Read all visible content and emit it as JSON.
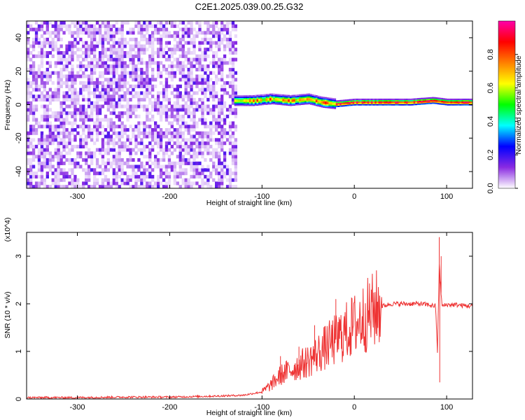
{
  "page": {
    "title": "C2E1.2025.039.00.25.G32"
  },
  "chart_data": [
    {
      "type": "heatmap",
      "xlabel": "Height of straight line (km)",
      "ylabel": "Frequency (Hz)",
      "xlim": [
        -355,
        128
      ],
      "ylim": [
        -50,
        50
      ],
      "xticks": [
        -300,
        -200,
        -100,
        0,
        100
      ],
      "yticks": [
        -40,
        -20,
        0,
        20,
        40
      ],
      "colorbar": {
        "label": "Normalized spectral amplitude",
        "range": [
          0,
          1
        ],
        "ticks": [
          "0.0",
          "0.2",
          "0.4",
          "0.6",
          "0.8"
        ],
        "tick_values": [
          0,
          0.2,
          0.4,
          0.6,
          0.8
        ],
        "colors": [
          "#ffffff",
          "#8a2be2",
          "#0000ff",
          "#00ffff",
          "#00ff00",
          "#ffff00",
          "#ff8000",
          "#ff0000",
          "#ff00aa"
        ]
      },
      "noise_region_km": [
        -355,
        -128
      ],
      "signal_ridge": {
        "points": [
          [
            -130,
            2
          ],
          [
            -110,
            2
          ],
          [
            -90,
            3
          ],
          [
            -70,
            2
          ],
          [
            -50,
            3
          ],
          [
            -35,
            1
          ],
          [
            -20,
            0
          ],
          [
            0,
            1
          ],
          [
            30,
            1
          ],
          [
            60,
            1
          ],
          [
            85,
            2
          ],
          [
            100,
            1
          ],
          [
            128,
            1
          ]
        ]
      }
    },
    {
      "type": "line",
      "xlabel": "Height of straight line (km)",
      "ylabel": "SNR (10 * v/v)",
      "y_multiplier": "(x10^4)",
      "xlim": [
        -355,
        128
      ],
      "ylim": [
        0,
        35000
      ],
      "xticks": [
        -300,
        -200,
        -100,
        0,
        100
      ],
      "yticks": [
        0,
        1,
        2,
        3
      ],
      "y_tick_scale": 10000,
      "color": "#ee3333",
      "series": [
        {
          "x": [
            -355,
            -300,
            -250,
            -200,
            -150,
            -120,
            -100,
            -90,
            -80,
            -70,
            -60,
            -50,
            -40,
            -30,
            -20,
            -10,
            0,
            10,
            20,
            30,
            40,
            50,
            60,
            70,
            80,
            88,
            90,
            92,
            95,
            100,
            110,
            120,
            128
          ],
          "y": [
            300,
            300,
            400,
            400,
            600,
            800,
            1500,
            3000,
            5000,
            6000,
            7000,
            8000,
            9500,
            11000,
            12500,
            14000,
            15500,
            17000,
            18500,
            19500,
            20000,
            20000,
            20000,
            20000,
            19800,
            19500,
            10000,
            28000,
            19500,
            19800,
            19800,
            19600,
            19500
          ],
          "spikes": [
            {
              "x": -80,
              "y": 9000
            },
            {
              "x": -60,
              "y": 11000
            },
            {
              "x": -43,
              "y": 15500
            },
            {
              "x": -20,
              "y": 21000
            },
            {
              "x": 92,
              "y": 34000
            },
            {
              "x": 92.5,
              "y": 3500
            },
            {
              "x": 94,
              "y": 30000
            }
          ]
        }
      ]
    }
  ]
}
